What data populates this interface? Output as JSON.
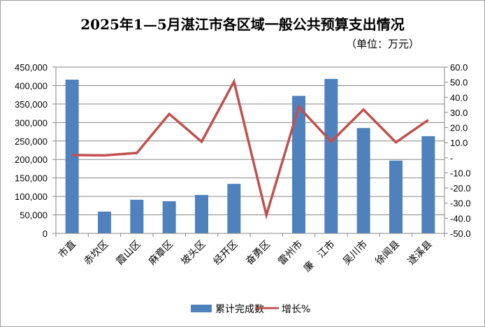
{
  "chart_data": {
    "type": "bar+line",
    "title": "2025年1—5月湛江市各区域一般公共预算支出情况",
    "subtitle": "（单位：万元）",
    "categories": [
      "市直",
      "赤坎区",
      "霞山区",
      "麻章区",
      "坡头区",
      "经开区",
      "奋勇区",
      "雷州市",
      "廉　江市",
      "吴川市",
      "徐闻县",
      "遂溪县"
    ],
    "series": [
      {
        "name": "累计完成数",
        "type": "bar",
        "axis": "left",
        "color": "#4f81bd",
        "values": [
          416000,
          59000,
          91000,
          87000,
          104000,
          134000,
          0,
          372000,
          418000,
          285000,
          197000,
          263000
        ]
      },
      {
        "name": "增长%",
        "type": "line",
        "axis": "right",
        "color": "#c0504d",
        "values": [
          1.8,
          1.6,
          3.2,
          29.0,
          10.6,
          50.4,
          -37.9,
          33.7,
          10.6,
          31.9,
          10.2,
          25.0
        ]
      }
    ],
    "left_axis": {
      "min": 0,
      "max": 450000,
      "step": 50000,
      "tick_labels": [
        "0",
        "50,000",
        "100,000",
        "150,000",
        "200,000",
        "250,000",
        "300,000",
        "350,000",
        "400,000",
        "450,000"
      ]
    },
    "right_axis": {
      "min": -50,
      "max": 60,
      "step": 10,
      "tick_labels": [
        "-50.0",
        "-40.0",
        "-30.0",
        "-20.0",
        "-10.0",
        "-",
        "10.0",
        "20.0",
        "30.0",
        "40.0",
        "50.0",
        "60.0"
      ]
    },
    "grid": true,
    "legend_position": "bottom"
  }
}
